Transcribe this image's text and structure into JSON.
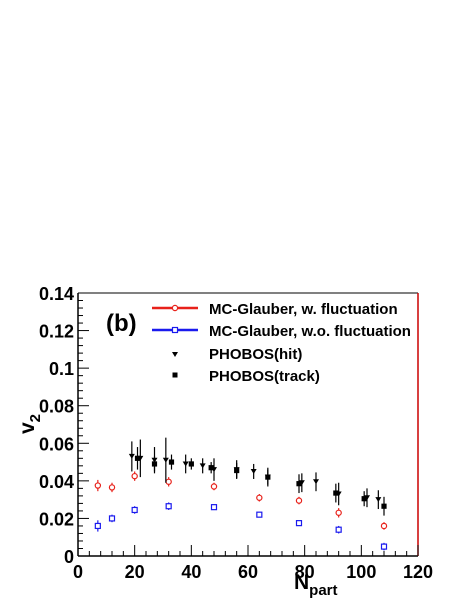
{
  "chart_data": {
    "type": "scatter",
    "panel_label": "(b)",
    "xlabel_main": "N",
    "xlabel_sub": "part",
    "ylabel_main": "v",
    "ylabel_sub": "2",
    "xlim": [
      0,
      120
    ],
    "ylim": [
      0,
      0.14
    ],
    "x_ticks": [
      0,
      20,
      40,
      60,
      80,
      100,
      120
    ],
    "x_tick_labels": [
      "0",
      "20",
      "40",
      "60",
      "80",
      "100",
      "120"
    ],
    "y_ticks": [
      0,
      0.02,
      0.04,
      0.06,
      0.08,
      0.1,
      0.12,
      0.14
    ],
    "y_tick_labels": [
      "0",
      "0.02",
      "0.04",
      "0.06",
      "0.08",
      "0.1",
      "0.12",
      "0.14"
    ],
    "grid": false,
    "legend_position": "top-right",
    "series": [
      {
        "name": "MC-Glauber, w. fluctuation",
        "marker": "open-circle",
        "line": true,
        "color": "#e8211a",
        "x": [
          7,
          12,
          20,
          32,
          48,
          64,
          78,
          92,
          108
        ],
        "y": [
          0.0375,
          0.0365,
          0.0425,
          0.0395,
          0.037,
          0.031,
          0.0295,
          0.023,
          0.016
        ],
        "err": [
          0.003,
          0.0025,
          0.0025,
          0.0025,
          0.002,
          0.002,
          0.002,
          0.0025,
          0.002
        ]
      },
      {
        "name": "MC-Glauber, w.o. fluctuation",
        "marker": "open-square",
        "line": true,
        "color": "#1a1aee",
        "x": [
          7,
          12,
          20,
          32,
          48,
          64,
          78,
          92,
          108
        ],
        "y": [
          0.016,
          0.02,
          0.0245,
          0.0265,
          0.026,
          0.022,
          0.0175,
          0.014,
          0.005
        ],
        "err": [
          0.003,
          0.002,
          0.002,
          0.002,
          0.0015,
          0.0015,
          0.0015,
          0.002,
          0.002
        ]
      },
      {
        "name": "PHOBOS(hit)",
        "marker": "triangle-down",
        "line": false,
        "color": "#000000",
        "x": [
          19,
          22,
          27,
          31,
          38,
          44,
          48,
          56,
          62,
          67,
          79,
          84,
          92,
          102,
          106
        ],
        "y": [
          0.053,
          0.052,
          0.051,
          0.051,
          0.049,
          0.048,
          0.046,
          0.046,
          0.045,
          0.042,
          0.039,
          0.0395,
          0.033,
          0.031,
          0.03
        ],
        "err": [
          0.008,
          0.01,
          0.007,
          0.012,
          0.005,
          0.004,
          0.006,
          0.005,
          0.004,
          0.005,
          0.005,
          0.005,
          0.006,
          0.005,
          0.005
        ]
      },
      {
        "name": "PHOBOS(track)",
        "marker": "filled-square",
        "line": false,
        "color": "#000000",
        "x": [
          21,
          27,
          33,
          40,
          47,
          56,
          67,
          78,
          91,
          101,
          108
        ],
        "y": [
          0.052,
          0.049,
          0.05,
          0.049,
          0.047,
          0.0455,
          0.042,
          0.0385,
          0.0335,
          0.0305,
          0.0265
        ],
        "err": [
          0.006,
          0.004,
          0.004,
          0.003,
          0.003,
          0.004,
          0.004,
          0.005,
          0.005,
          0.004,
          0.005
        ]
      }
    ]
  }
}
